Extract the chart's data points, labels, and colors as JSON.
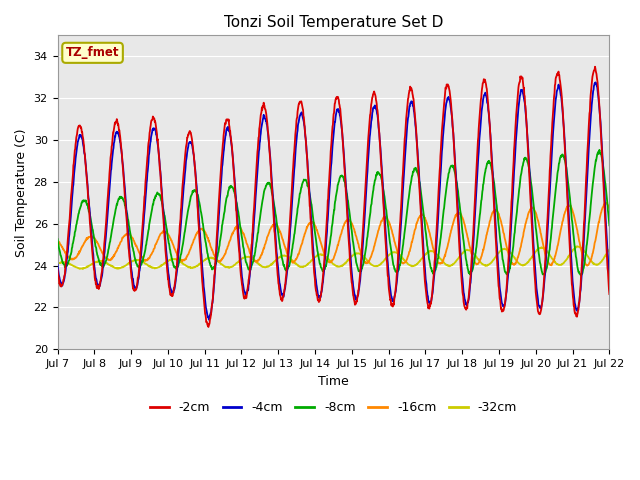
{
  "title": "Tonzi Soil Temperature Set D",
  "xlabel": "Time",
  "ylabel": "Soil Temperature (C)",
  "ylim": [
    20,
    35
  ],
  "yticks": [
    20,
    22,
    24,
    26,
    28,
    30,
    32,
    34
  ],
  "xtick_labels": [
    "Jul 7",
    "Jul 8",
    "Jul 9",
    "Jul 10",
    "Jul 11",
    "Jul 12",
    "Jul 13",
    "Jul 14",
    "Jul 15",
    "Jul 16",
    "Jul 17",
    "Jul 18",
    "Jul 19",
    "Jul 20",
    "Jul 21",
    "Jul 22"
  ],
  "annotation_text": "TZ_fmet",
  "annotation_color": "#aa0000",
  "annotation_bg": "#ffffcc",
  "annotation_border": "#aaaa00",
  "line_colors": [
    "#dd0000",
    "#0000cc",
    "#00aa00",
    "#ff8800",
    "#cccc00"
  ],
  "line_labels": [
    "-2cm",
    "-4cm",
    "-8cm",
    "-16cm",
    "-32cm"
  ],
  "bg_color": "#e8e8e8",
  "grid_color": "#ffffff",
  "title_fontsize": 11,
  "axis_label_fontsize": 9,
  "tick_fontsize": 8
}
